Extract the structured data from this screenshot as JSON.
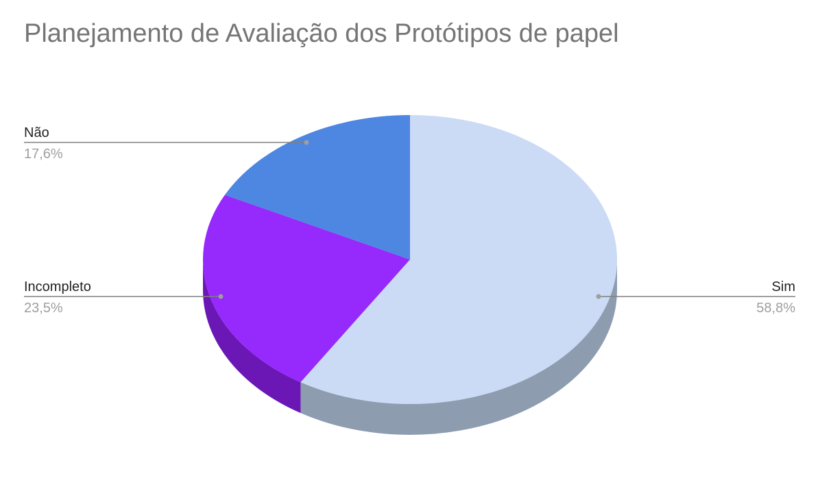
{
  "chart_data": {
    "type": "pie",
    "title": "Planejamento de Avaliação dos Protótipos de papel",
    "slices": [
      {
        "label": "Sim",
        "percent_label": "58,8%",
        "value": 58.8,
        "color": "#cbdaf5",
        "side_color": "#8e9cb0"
      },
      {
        "label": "Incompleto",
        "percent_label": "23,5%",
        "value": 23.5,
        "color": "#9629fc",
        "side_color": "#6a17b5"
      },
      {
        "label": "Não",
        "percent_label": "17,6%",
        "value": 17.6,
        "color": "#4d87e2",
        "side_color": "#35609f"
      }
    ],
    "label_color": "#222222",
    "percent_color": "#9e9e9e",
    "leader_color": "#808080",
    "legend": "none",
    "style": "3d"
  }
}
